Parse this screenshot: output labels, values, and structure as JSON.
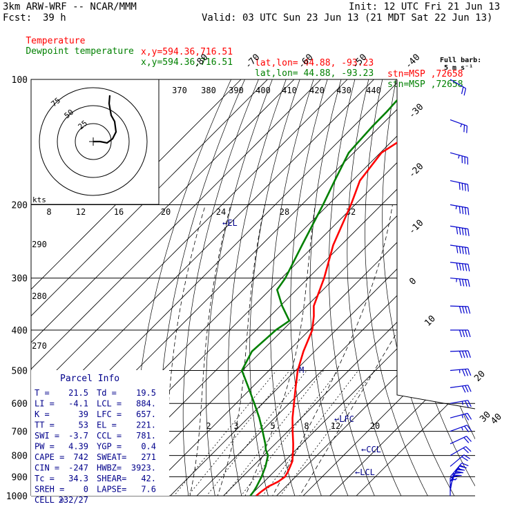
{
  "header": {
    "model": "3km ARW-WRF -- NCAR/MMM",
    "init": "Init: 12 UTC Fri 21 Jun 13",
    "fcst_label": "Fcst:",
    "fcst_hours": "39 h",
    "valid": "Valid: 03 UTC Sun 23 Jun 13 (21 MDT Sat 22 Jun 13)",
    "temp_line": {
      "name": "Temperature",
      "xy": "x,y=594.36,716.51",
      "latlon": "lat,lon= 44.88, -93.23",
      "stn": "stn=MSP ,72658",
      "color": "#ff0000"
    },
    "dew_line": {
      "name": "Dewpoint temperature",
      "xy": "x,y=594.36,716.51",
      "latlon": "lat,lon= 44.88, -93.23",
      "stn": "stn=MSP ,72658",
      "color": "#008000"
    }
  },
  "barb_legend": {
    "title": "Full barb:",
    "value": "5 m s⁻¹"
  },
  "hodograph": {
    "unit_label": "kts",
    "ring_labels": [
      "75",
      "50",
      "25"
    ],
    "points": [
      [
        0,
        0
      ],
      [
        10,
        0
      ],
      [
        20,
        2
      ],
      [
        28,
        -4
      ],
      [
        33,
        -14
      ],
      [
        31,
        -29
      ],
      [
        26,
        -38
      ],
      [
        23,
        -55
      ],
      [
        24,
        -67
      ]
    ]
  },
  "parcel_info": {
    "title": "Parcel Info",
    "rows": [
      [
        "T  =",
        "21.5",
        "Td =",
        "19.5"
      ],
      [
        "LI =",
        "-4.1",
        "LCL =",
        "884."
      ],
      [
        "K  =",
        "39",
        "LFC =",
        "657."
      ],
      [
        "TT =",
        "53",
        "EL  =",
        "221."
      ],
      [
        "SWI =",
        "-3.7",
        "CCL =",
        "781."
      ],
      [
        "PW =",
        "4.39",
        "YGP =",
        "0.4"
      ],
      [
        "CAPE =",
        "742",
        "SWEAT=",
        "271"
      ],
      [
        "CIN =",
        "-247",
        "HWBZ=",
        "3923."
      ],
      [
        "Tc =",
        "34.3",
        "SHEAR=",
        "42."
      ],
      [
        "SREH =",
        "0",
        "LAPSE=",
        "7.6"
      ],
      [
        "CELL =",
        "232/27",
        "",
        ""
      ]
    ]
  },
  "chart_data": {
    "type": "line",
    "title": "",
    "ylabel": "",
    "y_scale": "log pressure (hPa)",
    "pressure_ticks": [
      100,
      200,
      300,
      400,
      500,
      600,
      700,
      800,
      900,
      1000
    ],
    "skew_temp_labels": [
      "-80",
      "-70",
      "-60",
      "-50",
      "-40",
      "-30",
      "-20",
      "-10",
      "0",
      "10",
      "20",
      "30",
      "40"
    ],
    "theta_labels": [
      "370",
      "380",
      "390",
      "400",
      "410",
      "420",
      "430",
      "440",
      "290",
      "280",
      "270"
    ],
    "mixing_ratio_labels": [
      "8",
      "12",
      "16",
      "20",
      "24",
      "28",
      "32"
    ],
    "mixing_ratio_lower_labels": [
      "2",
      "3",
      "5",
      "8",
      "12",
      "20"
    ],
    "level_markers": [
      "EL",
      "LFC",
      "CCL",
      "LCL",
      "M"
    ],
    "series": [
      {
        "name": "Temperature",
        "color": "#ff0000",
        "points": [
          [
            1000,
            22.3
          ],
          [
            975,
            22.7
          ],
          [
            950,
            23.4
          ],
          [
            925,
            25.3
          ],
          [
            900,
            26.0
          ],
          [
            875,
            25.2
          ],
          [
            850,
            24.1
          ],
          [
            825,
            22.9
          ],
          [
            800,
            20.9
          ],
          [
            775,
            18.9
          ],
          [
            750,
            16.7
          ],
          [
            700,
            11.8
          ],
          [
            650,
            6.7
          ],
          [
            600,
            1.8
          ],
          [
            550,
            -3.5
          ],
          [
            500,
            -9.2
          ],
          [
            450,
            -14.2
          ],
          [
            400,
            -18.9
          ],
          [
            370,
            -23.6
          ],
          [
            350,
            -27.4
          ],
          [
            300,
            -34.0
          ],
          [
            250,
            -43.0
          ],
          [
            200,
            -51.5
          ],
          [
            175,
            -57.2
          ],
          [
            150,
            -59.6
          ],
          [
            140,
            -57.0
          ],
          [
            130,
            -59.3
          ],
          [
            120,
            -60.5
          ],
          [
            110,
            -60.0
          ],
          [
            100,
            -62.0
          ]
        ]
      },
      {
        "name": "Dewpoint temperature",
        "color": "#008000",
        "points": [
          [
            1000,
            20.1
          ],
          [
            975,
            19.7
          ],
          [
            950,
            19.0
          ],
          [
            925,
            18.1
          ],
          [
            900,
            17.2
          ],
          [
            850,
            14.8
          ],
          [
            800,
            11.6
          ],
          [
            775,
            8.6
          ],
          [
            750,
            6.2
          ],
          [
            700,
            0.5
          ],
          [
            650,
            -5.8
          ],
          [
            600,
            -13.1
          ],
          [
            550,
            -21.2
          ],
          [
            500,
            -30.2
          ],
          [
            450,
            -33.6
          ],
          [
            400,
            -32.6
          ],
          [
            380,
            -31.0
          ],
          [
            350,
            -39.3
          ],
          [
            320,
            -47.3
          ],
          [
            300,
            -48.6
          ],
          [
            250,
            -54.7
          ],
          [
            200,
            -62.0
          ],
          [
            175,
            -66.7
          ],
          [
            150,
            -71.9
          ],
          [
            130,
            -72.9
          ],
          [
            120,
            -73.0
          ],
          [
            110,
            -73.6
          ],
          [
            100,
            -77.8
          ]
        ]
      }
    ],
    "wind_barbs": [
      {
        "p": 1000,
        "dir": 180,
        "spd": 10
      },
      {
        "p": 975,
        "dir": 190,
        "spd": 14
      },
      {
        "p": 950,
        "dir": 200,
        "spd": 16
      },
      {
        "p": 925,
        "dir": 210,
        "spd": 15
      },
      {
        "p": 900,
        "dir": 220,
        "spd": 14
      },
      {
        "p": 850,
        "dir": 230,
        "spd": 12
      },
      {
        "p": 800,
        "dir": 240,
        "spd": 12
      },
      {
        "p": 750,
        "dir": 245,
        "spd": 12
      },
      {
        "p": 700,
        "dir": 250,
        "spd": 13
      },
      {
        "p": 650,
        "dir": 255,
        "spd": 14
      },
      {
        "p": 600,
        "dir": 260,
        "spd": 14
      },
      {
        "p": 550,
        "dir": 262,
        "spd": 16
      },
      {
        "p": 500,
        "dir": 265,
        "spd": 18
      },
      {
        "p": 450,
        "dir": 268,
        "spd": 20
      },
      {
        "p": 400,
        "dir": 270,
        "spd": 20
      },
      {
        "p": 350,
        "dir": 272,
        "spd": 22
      },
      {
        "p": 300,
        "dir": 275,
        "spd": 24
      },
      {
        "p": 275,
        "dir": 276,
        "spd": 26
      },
      {
        "p": 250,
        "dir": 278,
        "spd": 26
      },
      {
        "p": 225,
        "dir": 279,
        "spd": 25
      },
      {
        "p": 200,
        "dir": 280,
        "spd": 24
      },
      {
        "p": 175,
        "dir": 282,
        "spd": 22
      },
      {
        "p": 150,
        "dir": 285,
        "spd": 18
      },
      {
        "p": 125,
        "dir": 290,
        "spd": 14
      },
      {
        "p": 100,
        "dir": 300,
        "spd": 10
      }
    ]
  }
}
